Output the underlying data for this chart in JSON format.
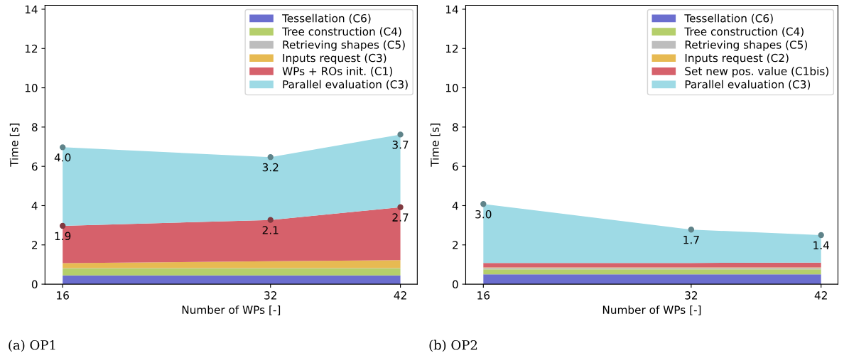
{
  "chart_data": [
    {
      "type": "area",
      "stacked": true,
      "xlabel": "Number of WPs [-]",
      "ylabel": "Time [s]",
      "x": [
        16,
        32,
        42
      ],
      "xlim": [
        14.64,
        43.3
      ],
      "xticks": [
        16,
        32,
        42
      ],
      "ylim": [
        0,
        14.2
      ],
      "yticks": [
        0,
        2,
        4,
        6,
        8,
        10,
        12,
        14
      ],
      "legend": "top right",
      "grid": false,
      "annotations": [
        "(a) OP1"
      ],
      "series": [
        {
          "name": "Tessellation (C6)",
          "color": "#6b6ecf",
          "values": [
            0.45,
            0.45,
            0.45
          ]
        },
        {
          "name": "Tree construction (C4)",
          "color": "#b5cf6b",
          "values": [
            0.35,
            0.35,
            0.35
          ]
        },
        {
          "name": "Retrieving shapes (C5)",
          "color": "#bdbdbd",
          "values": [
            0.02,
            0.02,
            0.02
          ]
        },
        {
          "name": "Inputs request (C3)",
          "color": "#e7ba52",
          "values": [
            0.25,
            0.35,
            0.4
          ]
        },
        {
          "name": "WPs + ROs init. (C1)",
          "color": "#d6616b",
          "values": [
            1.9,
            2.1,
            2.7
          ],
          "value_labels": [
            "1.9",
            "2.1",
            "2.7"
          ],
          "marker": "circle"
        },
        {
          "name": "Parallel evaluation (C3)",
          "color": "#9edae5",
          "values": [
            4.0,
            3.2,
            3.7
          ],
          "value_labels": [
            "4.0",
            "3.2",
            "3.7"
          ],
          "marker": "circle"
        }
      ]
    },
    {
      "type": "area",
      "stacked": true,
      "xlabel": "Number of WPs [-]",
      "ylabel": "Time [s]",
      "x": [
        16,
        32,
        42
      ],
      "xlim": [
        14.64,
        43.3
      ],
      "xticks": [
        16,
        32,
        42
      ],
      "ylim": [
        0,
        14.2
      ],
      "yticks": [
        0,
        2,
        4,
        6,
        8,
        10,
        12,
        14
      ],
      "legend": "top right",
      "grid": false,
      "annotations": [
        "(b) OP2"
      ],
      "series": [
        {
          "name": "Tessellation (C6)",
          "color": "#6b6ecf",
          "values": [
            0.5,
            0.5,
            0.5
          ]
        },
        {
          "name": "Tree construction (C4)",
          "color": "#b5cf6b",
          "values": [
            0.25,
            0.25,
            0.25
          ]
        },
        {
          "name": "Retrieving shapes (C5)",
          "color": "#bdbdbd",
          "values": [
            0.08,
            0.08,
            0.08
          ]
        },
        {
          "name": "Inputs request (C2)",
          "color": "#e7ba52",
          "values": [
            0.02,
            0.02,
            0.02
          ]
        },
        {
          "name": "Set new pos. value (C1bis)",
          "color": "#d6616b",
          "values": [
            0.23,
            0.23,
            0.25
          ]
        },
        {
          "name": "Parallel evaluation (C3)",
          "color": "#9edae5",
          "values": [
            3.0,
            1.7,
            1.4
          ],
          "value_labels": [
            "3.0",
            "1.7",
            "1.4"
          ],
          "marker": "circle"
        }
      ]
    }
  ]
}
